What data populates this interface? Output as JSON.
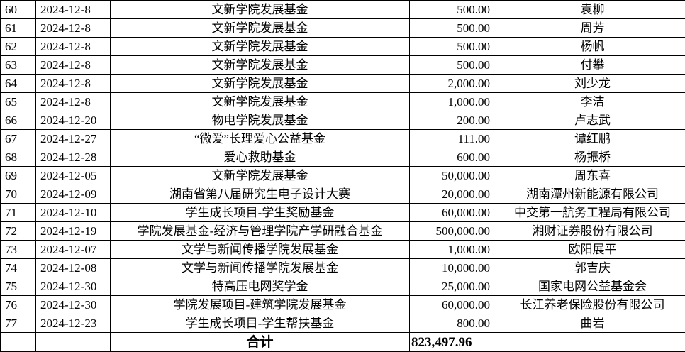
{
  "rows": [
    {
      "no": "60",
      "date": "2024-12-8",
      "project": "文新学院发展基金",
      "amount": "500.00",
      "donor": "袁柳"
    },
    {
      "no": "61",
      "date": "2024-12-8",
      "project": "文新学院发展基金",
      "amount": "500.00",
      "donor": "周芳"
    },
    {
      "no": "62",
      "date": "2024-12-8",
      "project": "文新学院发展基金",
      "amount": "500.00",
      "donor": "杨帆"
    },
    {
      "no": "63",
      "date": "2024-12-8",
      "project": "文新学院发展基金",
      "amount": "500.00",
      "donor": "付攀"
    },
    {
      "no": "64",
      "date": "2024-12-8",
      "project": "文新学院发展基金",
      "amount": "2,000.00",
      "donor": "刘少龙"
    },
    {
      "no": "65",
      "date": "2024-12-8",
      "project": "文新学院发展基金",
      "amount": "1,000.00",
      "donor": "李洁"
    },
    {
      "no": "66",
      "date": "2024-12-20",
      "project": "物电学院发展基金",
      "amount": "200.00",
      "donor": "卢志武"
    },
    {
      "no": "67",
      "date": "2024-12-27",
      "project": "“微爱”长理爱心公益基金",
      "amount": "111.00",
      "donor": "谭红鹏"
    },
    {
      "no": "68",
      "date": "2024-12-28",
      "project": "爱心救助基金",
      "amount": "600.00",
      "donor": "杨振桥"
    },
    {
      "no": "69",
      "date": "2024-12-05",
      "project": "文新学院发展基金",
      "amount": "50,000.00",
      "donor": "周东喜"
    },
    {
      "no": "70",
      "date": "2024-12-09",
      "project": "湖南省第八届研究生电子设计大赛",
      "amount": "20,000.00",
      "donor": "湖南潭州新能源有限公司"
    },
    {
      "no": "71",
      "date": "2024-12-10",
      "project": "学生成长项目-学生奖励基金",
      "amount": "60,000.00",
      "donor": "中交第一航务工程局有限公司"
    },
    {
      "no": "72",
      "date": "2024-12-19",
      "project": "学院发展基金-经济与管理学院产学研融合基金",
      "amount": "500,000.00",
      "donor": "湘财证券股份有限公司"
    },
    {
      "no": "73",
      "date": "2024-12-07",
      "project": "文学与新闻传播学院发展基金",
      "amount": "1,000.00",
      "donor": "欧阳展平"
    },
    {
      "no": "74",
      "date": "2024-12-08",
      "project": "文学与新闻传播学院发展基金",
      "amount": "10,000.00",
      "donor": "郭吉庆"
    },
    {
      "no": "75",
      "date": "2024-12-30",
      "project": "特高压电网奖学金",
      "amount": "25,000.00",
      "donor": "国家电网公益基金会"
    },
    {
      "no": "76",
      "date": "2024-12-30",
      "project": "学院发展项目-建筑学院发展基金",
      "amount": "60,000.00",
      "donor": "长江养老保险股份有限公司"
    },
    {
      "no": "77",
      "date": "2024-12-23",
      "project": "学生成长项目-学生帮扶基金",
      "amount": "800.00",
      "donor": "曲岩"
    }
  ],
  "total": {
    "label": "合计",
    "amount": "823,497.96"
  }
}
